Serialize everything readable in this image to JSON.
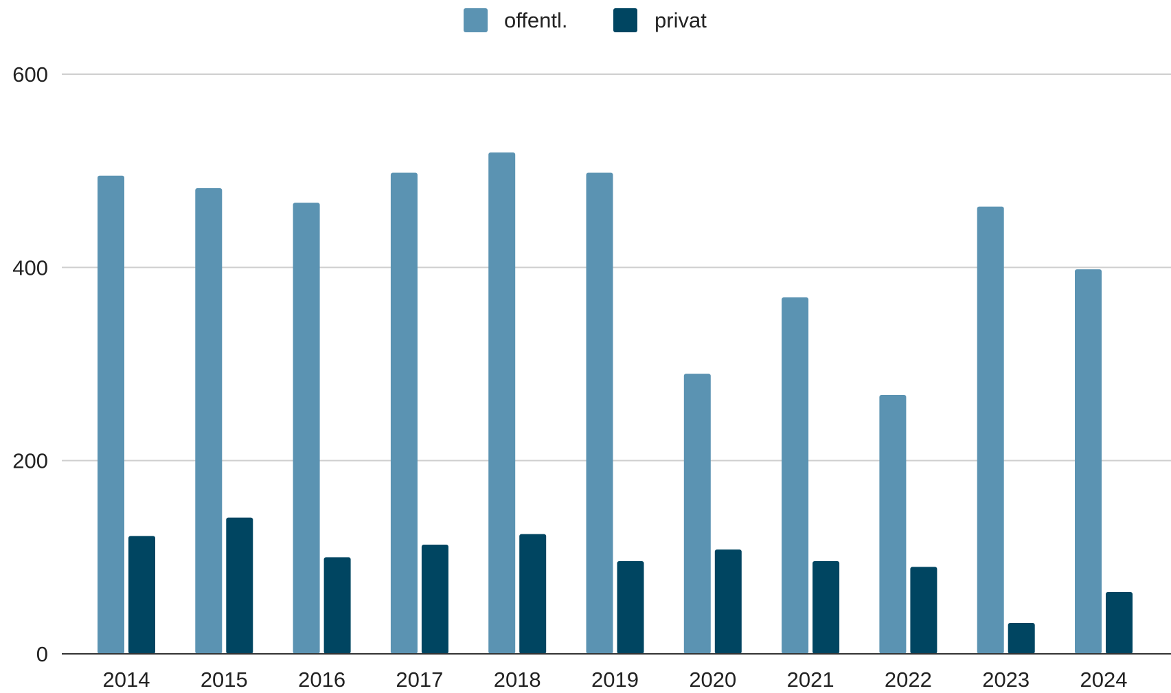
{
  "chart_data": {
    "type": "bar",
    "categories": [
      "2014",
      "2015",
      "2016",
      "2017",
      "2018",
      "2019",
      "2020",
      "2021",
      "2022",
      "2023",
      "2024"
    ],
    "series": [
      {
        "name": "offentl.",
        "color": "#5b93b2",
        "values": [
          495,
          482,
          467,
          498,
          519,
          498,
          290,
          369,
          268,
          463,
          398
        ]
      },
      {
        "name": "privat",
        "color": "#004561",
        "values": [
          122,
          141,
          100,
          113,
          124,
          96,
          108,
          96,
          90,
          32,
          64
        ]
      }
    ],
    "yticks": [
      "0",
      "200",
      "400",
      "600"
    ],
    "ylim": [
      0,
      600
    ],
    "grid": true,
    "legend_position": "top-center"
  }
}
